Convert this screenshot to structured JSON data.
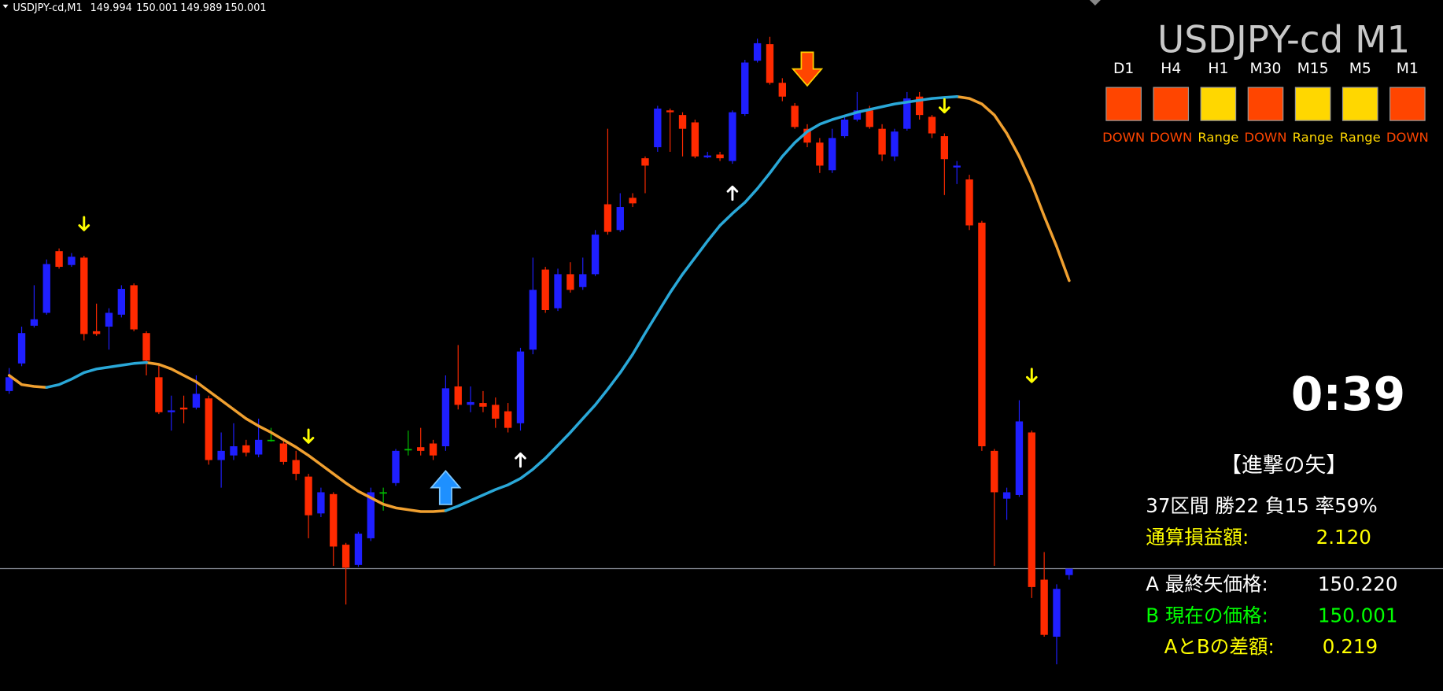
{
  "chart_data": {
    "type": "candlestick",
    "title": "USDJPY-cd,M1",
    "ylim": [
      149.868,
      150.619
    ],
    "colors": {
      "up": "#1f1fff",
      "down": "#ff2a00",
      "doji": "#00c000",
      "price_line": "#8a8f99"
    },
    "open": [
      150.194,
      150.224,
      150.265,
      150.279,
      150.346,
      150.331,
      150.339,
      150.259,
      150.264,
      150.277,
      150.309,
      150.257,
      150.209,
      150.171,
      150.176,
      150.176,
      150.186,
      150.119,
      150.124,
      150.135,
      150.125,
      150.141,
      150.137,
      150.119,
      150.101,
      150.061,
      150.082,
      150.027,
      150.005,
      150.034,
      150.084,
      150.094,
      150.131,
      150.133,
      150.137,
      150.134,
      150.199,
      150.179,
      150.181,
      150.179,
      150.172,
      150.159,
      150.239,
      150.326,
      150.284,
      150.321,
      150.307,
      150.321,
      150.397,
      150.369,
      150.404,
      150.447,
      150.459,
      150.499,
      150.494,
      150.486,
      150.448,
      150.451,
      150.444,
      150.495,
      150.553,
      150.571,
      150.529,
      150.504,
      150.479,
      150.464,
      150.434,
      150.471,
      150.489,
      150.499,
      150.479,
      150.449,
      150.479,
      150.514,
      150.492,
      150.471,
      150.437,
      150.424,
      150.377,
      150.129,
      150.077,
      150.081,
      150.149,
      149.989,
      149.927,
      149.994
    ],
    "high": [
      150.219,
      150.264,
      150.309,
      150.337,
      150.349,
      150.344,
      150.341,
      150.289,
      150.284,
      150.309,
      150.311,
      150.259,
      150.223,
      150.189,
      150.189,
      150.211,
      150.189,
      150.149,
      150.159,
      150.141,
      150.164,
      150.154,
      150.141,
      150.129,
      150.104,
      150.089,
      150.084,
      150.029,
      150.041,
      150.089,
      150.089,
      150.131,
      150.151,
      150.154,
      150.141,
      150.211,
      150.244,
      150.199,
      150.194,
      150.187,
      150.181,
      150.241,
      150.339,
      150.329,
      150.327,
      150.334,
      150.339,
      150.369,
      150.479,
      150.409,
      150.409,
      150.449,
      150.504,
      150.501,
      150.497,
      150.489,
      150.454,
      150.454,
      150.499,
      150.554,
      150.577,
      150.579,
      150.534,
      150.507,
      150.484,
      150.469,
      150.479,
      150.494,
      150.519,
      150.504,
      150.484,
      150.479,
      150.519,
      150.519,
      150.494,
      150.474,
      150.444,
      150.429,
      150.379,
      150.131,
      150.089,
      150.184,
      150.151,
      150.019,
      149.984,
      150.001
    ],
    "low": [
      150.191,
      150.221,
      150.263,
      150.277,
      150.327,
      150.329,
      150.249,
      150.254,
      150.239,
      150.274,
      150.259,
      150.211,
      150.169,
      150.151,
      150.159,
      150.174,
      150.114,
      150.089,
      150.119,
      150.123,
      150.122,
      150.139,
      150.114,
      150.097,
      150.034,
      150.057,
      150.004,
      149.962,
      150.003,
      150.031,
      150.064,
      150.091,
      150.124,
      150.124,
      150.119,
      150.129,
      150.174,
      150.171,
      150.171,
      150.154,
      150.149,
      150.151,
      150.234,
      150.279,
      150.281,
      150.301,
      150.304,
      150.319,
      150.364,
      150.367,
      150.394,
      150.409,
      150.454,
      150.454,
      150.449,
      150.447,
      150.447,
      150.444,
      150.441,
      150.493,
      150.551,
      150.527,
      150.509,
      150.479,
      150.459,
      150.431,
      150.431,
      150.469,
      150.487,
      150.479,
      150.444,
      150.444,
      150.477,
      150.489,
      150.469,
      150.407,
      150.419,
      150.369,
      150.129,
      150.004,
      150.054,
      150.079,
      149.969,
      149.927,
      149.897,
      149.989
    ],
    "close": [
      150.209,
      150.257,
      150.272,
      150.332,
      150.329,
      150.34,
      150.256,
      150.256,
      150.279,
      150.305,
      150.261,
      150.227,
      150.171,
      150.173,
      150.174,
      150.191,
      150.119,
      150.129,
      150.134,
      150.127,
      150.141,
      150.141,
      150.117,
      150.104,
      150.059,
      150.084,
      150.025,
      150.002,
      150.039,
      150.084,
      150.084,
      150.129,
      150.131,
      150.129,
      150.124,
      150.197,
      150.179,
      150.182,
      150.177,
      150.164,
      150.154,
      150.237,
      150.304,
      150.282,
      150.321,
      150.304,
      150.321,
      150.364,
      150.367,
      150.394,
      150.398,
      150.439,
      150.501,
      150.497,
      150.479,
      150.449,
      150.45,
      150.447,
      150.497,
      150.551,
      150.572,
      150.529,
      150.514,
      150.481,
      150.464,
      150.439,
      150.469,
      150.489,
      150.499,
      150.481,
      150.451,
      150.476,
      150.512,
      150.494,
      150.474,
      150.446,
      150.439,
      150.374,
      150.134,
      150.084,
      150.084,
      150.161,
      149.981,
      149.929,
      149.979,
      150.001
    ],
    "series": [
      {
        "color": "#f0a030",
        "values": [
          150.211,
          150.201,
          150.199,
          150.198,
          null,
          null,
          null,
          null,
          null,
          null,
          null,
          150.225,
          150.223,
          150.218,
          150.211,
          150.204,
          150.194,
          150.184,
          150.174,
          150.164,
          150.156,
          150.149,
          150.141,
          150.133,
          150.124,
          150.114,
          150.104,
          150.094,
          150.085,
          150.078,
          150.071,
          150.067,
          150.065,
          150.063,
          150.063,
          150.064,
          null,
          null,
          null,
          null,
          null,
          null,
          null,
          null,
          null,
          null,
          null,
          null,
          null,
          null,
          null,
          null,
          null,
          null,
          null,
          null,
          null,
          null,
          null,
          null,
          null,
          null,
          null,
          null,
          null,
          null,
          null,
          null,
          null,
          null,
          null,
          null,
          null,
          null,
          null,
          null,
          150.514,
          150.512,
          150.506,
          150.494,
          150.474,
          150.449,
          150.419,
          150.384,
          150.351,
          150.314
        ]
      },
      {
        "color": "#2aa8d8",
        "values": [
          null,
          null,
          null,
          150.198,
          150.201,
          150.207,
          150.214,
          150.218,
          150.22,
          150.222,
          150.224,
          150.225,
          null,
          null,
          null,
          null,
          null,
          null,
          null,
          null,
          null,
          null,
          null,
          null,
          null,
          null,
          null,
          null,
          null,
          null,
          null,
          null,
          null,
          null,
          null,
          150.064,
          150.069,
          150.075,
          150.081,
          150.087,
          150.092,
          150.099,
          150.109,
          150.121,
          150.135,
          150.149,
          150.164,
          150.179,
          150.196,
          150.214,
          150.234,
          150.257,
          150.279,
          150.301,
          150.321,
          150.339,
          150.357,
          150.374,
          150.387,
          150.399,
          150.414,
          150.431,
          150.449,
          150.464,
          150.476,
          150.484,
          150.489,
          150.493,
          150.497,
          150.5,
          150.503,
          150.506,
          150.508,
          150.51,
          150.512,
          150.513,
          150.514,
          null,
          null,
          null,
          null,
          null,
          null,
          null,
          null,
          null
        ]
      }
    ],
    "signals": [
      {
        "candle": 6,
        "price": 150.376,
        "direction": "down",
        "size": "small",
        "color": "#ffff00"
      },
      {
        "candle": 24,
        "price": 150.145,
        "direction": "down",
        "size": "small",
        "color": "#ffff00"
      },
      {
        "candle": 35,
        "price": 150.089,
        "direction": "up",
        "size": "large",
        "color": "#1e90ff"
      },
      {
        "candle": 41,
        "price": 150.119,
        "direction": "up",
        "size": "small",
        "color": "#ffffff"
      },
      {
        "candle": 58,
        "price": 150.409,
        "direction": "up",
        "size": "small",
        "color": "#ffffff"
      },
      {
        "candle": 64,
        "price": 150.544,
        "direction": "down",
        "size": "large",
        "color": "#ff4500"
      },
      {
        "candle": 75,
        "price": 150.504,
        "direction": "down",
        "size": "small",
        "color": "#ffff00"
      },
      {
        "candle": 82,
        "price": 150.211,
        "direction": "down",
        "size": "small",
        "color": "#ffff00"
      }
    ]
  },
  "panel": {
    "title": "USDJPY-cd M1",
    "timeframes": [
      {
        "label": "D1",
        "state": "DOWN",
        "color": "#ff4500"
      },
      {
        "label": "H4",
        "state": "DOWN",
        "color": "#ff4500"
      },
      {
        "label": "H1",
        "state": "Range",
        "color": "#ffd700"
      },
      {
        "label": "M30",
        "state": "DOWN",
        "color": "#ff4500"
      },
      {
        "label": "M15",
        "state": "Range",
        "color": "#ffd700"
      },
      {
        "label": "M5",
        "state": "Range",
        "color": "#ffd700"
      },
      {
        "label": "M1",
        "state": "DOWN",
        "color": "#ff4500"
      }
    ],
    "timer": "0:39",
    "heading": "【進撃の矢】",
    "record": "37区間 勝22 負15 率59%",
    "profit": {
      "label": "通算損益額:",
      "value": "2.120"
    },
    "last_arrow": {
      "label": "A 最終矢価格:",
      "value": "150.220"
    },
    "current": {
      "label": "B 現在の価格:",
      "value": "150.001"
    },
    "difference": {
      "label": "AとBの差額:",
      "value": "0.219"
    }
  }
}
